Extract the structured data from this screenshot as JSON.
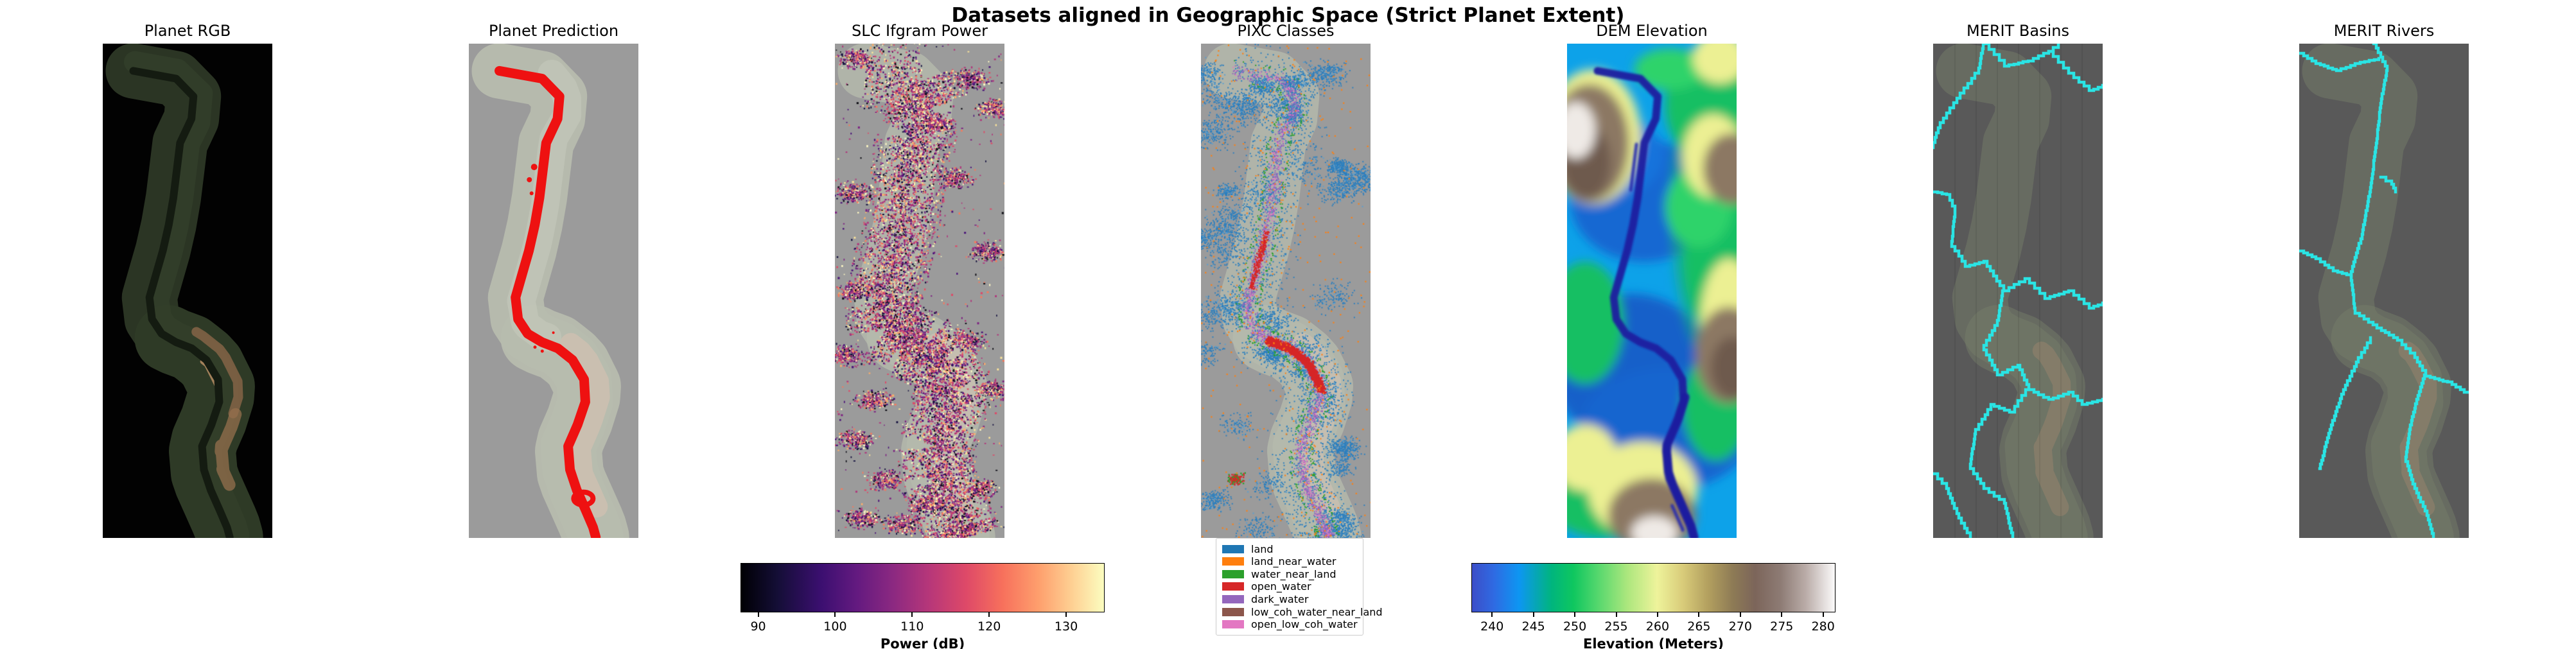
{
  "suptitle": "Datasets aligned in Geographic Space (Strict Planet Extent)",
  "panels": [
    {
      "title": "Planet RGB"
    },
    {
      "title": "Planet Prediction"
    },
    {
      "title": "SLC Ifgram Power"
    },
    {
      "title": "PIXC Classes"
    },
    {
      "title": "DEM Elevation"
    },
    {
      "title": "MERIT Basins"
    },
    {
      "title": "MERIT Rivers"
    }
  ],
  "colorbars": {
    "power": {
      "label": "Power (dB)",
      "vmin": 87.7,
      "vmax": 135.0,
      "ticks": [
        90,
        100,
        110,
        120,
        130
      ],
      "colormap": "magma"
    },
    "elevation": {
      "label": "Elevation (Meters)",
      "vmin": 237.5,
      "vmax": 281.5,
      "ticks": [
        240,
        245,
        250,
        255,
        260,
        265,
        270,
        275,
        280
      ],
      "colormap": "terrain"
    }
  },
  "legend": {
    "items": [
      {
        "label": "land",
        "color": "#1f77b4"
      },
      {
        "label": "land_near_water",
        "color": "#ff7f0e"
      },
      {
        "label": "water_near_land",
        "color": "#2ca02c"
      },
      {
        "label": "open_water",
        "color": "#d62728"
      },
      {
        "label": "dark_water",
        "color": "#9467bd"
      },
      {
        "label": "low_coh_water_near_land",
        "color": "#8c564b"
      },
      {
        "label": "open_low_coh_water",
        "color": "#e377c2"
      }
    ]
  },
  "colors": {
    "prediction_red": "#ee1111",
    "merit_cyan": "#2ae4e4",
    "panel_gray": "#9b9b9b",
    "merit_dark_gray": "#595959",
    "river_navy": "#1c1f9f",
    "planet_swath_green": "#2b3524"
  },
  "chart_data": {
    "type": "heatmap",
    "title": "Datasets aligned in Geographic Space (Strict Planet Extent)",
    "layout": "1 row x 7 map panels, shared geographic extent",
    "panels": [
      {
        "title": "Planet RGB",
        "content": "true-color satellite swath of meandering river on black background"
      },
      {
        "title": "Planet Prediction",
        "content": "red predicted river-water mask over faded swath on gray background"
      },
      {
        "title": "SLC Ifgram Power",
        "content": "magma-colored radar power speckle along river corridor on gray background"
      },
      {
        "title": "PIXC Classes",
        "content": "classified pixel-cloud speckle (7 classes, legend below) on gray background"
      },
      {
        "title": "DEM Elevation",
        "content": "terrain-colormap elevation map with dark-blue river channel"
      },
      {
        "title": "MERIT Basins",
        "content": "cyan pixelated basin boundary polygons on dark gray background"
      },
      {
        "title": "MERIT Rivers",
        "content": "cyan river centerline network on dark gray background"
      }
    ],
    "colorbars": [
      {
        "panel": "SLC Ifgram Power",
        "label": "Power (dB)",
        "ticks": [
          90,
          100,
          110,
          120,
          130
        ],
        "range": [
          87.7,
          135.0
        ],
        "colormap": "magma",
        "orientation": "horizontal"
      },
      {
        "panel": "DEM Elevation",
        "label": "Elevation (Meters)",
        "ticks": [
          240,
          245,
          250,
          255,
          260,
          265,
          270,
          275,
          280
        ],
        "range": [
          237.5,
          281.5
        ],
        "colormap": "terrain",
        "orientation": "horizontal"
      }
    ],
    "legend": {
      "panel": "PIXC Classes",
      "position": "below panel",
      "entries": [
        "land",
        "land_near_water",
        "water_near_land",
        "open_water",
        "dark_water",
        "low_coh_water_near_land",
        "open_low_coh_water"
      ]
    }
  }
}
